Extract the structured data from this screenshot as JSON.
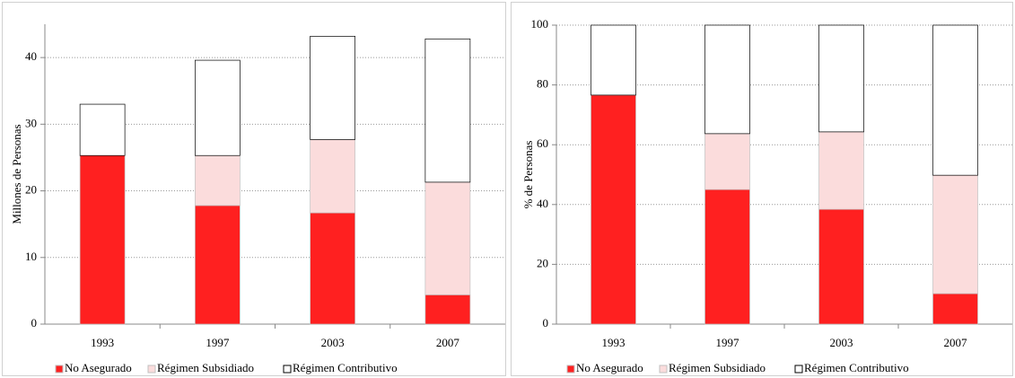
{
  "chart_data": [
    {
      "type": "bar",
      "stacked": true,
      "y_label": "Millones de Personas",
      "categories": [
        "1993",
        "1997",
        "2003",
        "2007"
      ],
      "series": [
        {
          "name": "No Asegurado",
          "color": "#ff2020",
          "values": [
            25.3,
            17.8,
            16.7,
            4.4
          ]
        },
        {
          "name": "Régimen Subsidiado",
          "color": "#fbdcdc",
          "values": [
            0,
            7.5,
            11.0,
            16.9
          ]
        },
        {
          "name": "Régimen Contributivo",
          "color": "#ffffff",
          "values": [
            7.7,
            14.3,
            15.5,
            21.5
          ]
        }
      ],
      "ylim": [
        0,
        45
      ],
      "yticks": [
        0,
        10,
        20,
        30,
        40
      ],
      "grid": true,
      "legend": "bottom"
    },
    {
      "type": "bar",
      "stacked": true,
      "y_label": "% de Personas",
      "categories": [
        "1993",
        "1997",
        "2003",
        "2007"
      ],
      "series": [
        {
          "name": "No Asegurado",
          "color": "#ff2020",
          "values": [
            76.6,
            45.0,
            38.4,
            10.2
          ]
        },
        {
          "name": "Régimen Subsidiado",
          "color": "#fbdcdc",
          "values": [
            0,
            18.7,
            25.9,
            39.6
          ]
        },
        {
          "name": "Régimen Contributivo",
          "color": "#ffffff",
          "values": [
            23.4,
            36.3,
            35.7,
            50.2
          ]
        }
      ],
      "ylim": [
        0,
        100
      ],
      "yticks": [
        0,
        20,
        40,
        60,
        80,
        100
      ],
      "grid": true,
      "legend": "bottom"
    }
  ]
}
